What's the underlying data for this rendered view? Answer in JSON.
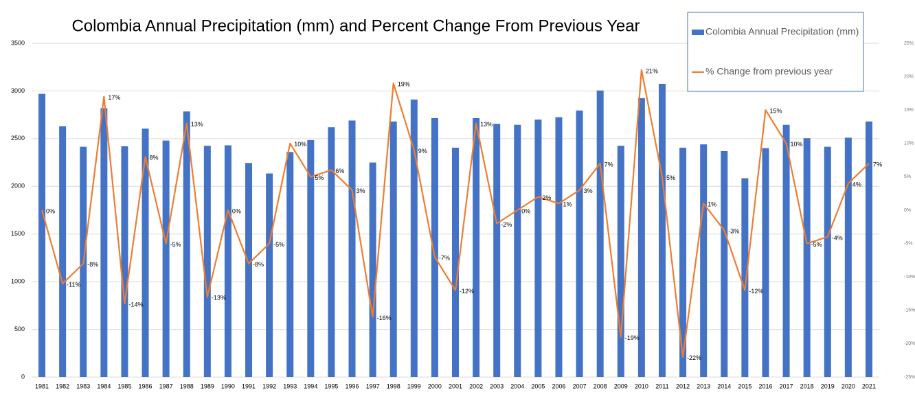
{
  "chart_data": {
    "type": "combo",
    "title": "Colombia Annual Precipitation (mm) and Percent Change From Previous Year",
    "categories": [
      "1981",
      "1982",
      "1983",
      "1984",
      "1985",
      "1986",
      "1987",
      "1988",
      "1989",
      "1990",
      "1991",
      "1992",
      "1993",
      "1994",
      "1995",
      "1996",
      "1997",
      "1998",
      "1999",
      "2000",
      "2001",
      "2002",
      "2003",
      "2004",
      "2005",
      "2006",
      "2007",
      "2008",
      "2009",
      "2010",
      "2011",
      "2012",
      "2013",
      "2014",
      "2015",
      "2016",
      "2017",
      "2018",
      "2019",
      "2020",
      "2021"
    ],
    "series": [
      {
        "name": "Colombia Annual Precipitation (mm)",
        "type": "bar",
        "color": "#4472c4",
        "values": [
          2970,
          2630,
          2415,
          2820,
          2420,
          2605,
          2480,
          2785,
          2425,
          2430,
          2245,
          2135,
          2360,
          2485,
          2620,
          2690,
          2250,
          2680,
          2910,
          2715,
          2405,
          2715,
          2655,
          2645,
          2700,
          2725,
          2795,
          3005,
          2425,
          2925,
          3075,
          2405,
          2440,
          2370,
          2085,
          2400,
          2645,
          2505,
          2415,
          2510,
          2680
        ]
      },
      {
        "name": "% Change from previous year",
        "type": "line",
        "color": "#ed7d31",
        "axis": "y2",
        "values": [
          0,
          -11,
          -8,
          17,
          -14,
          8,
          -5,
          13,
          -13,
          0,
          -8,
          -5,
          10,
          5,
          6,
          3,
          -16,
          19,
          9,
          -7,
          -12,
          13,
          -2,
          0,
          2,
          1,
          3,
          7,
          -19,
          21,
          5,
          -22,
          1,
          -3,
          -12,
          15,
          10,
          -5,
          -4,
          4,
          7
        ],
        "value_labels": [
          "0%",
          "-11%",
          "-8%",
          "17%",
          "-14%",
          "8%",
          "-5%",
          "13%",
          "-13%",
          "0%",
          "-8%",
          "-5%",
          "10%",
          "5%",
          "6%",
          "3%",
          "-16%",
          "19%",
          "9%",
          "-7%",
          "-12%",
          "13%",
          "-2%",
          "0%",
          "2%",
          "1%",
          "3%",
          "7%",
          "-19%",
          "21%",
          "5%",
          "-22%",
          "1%",
          "-3%",
          "-12%",
          "15%",
          "10%",
          "-5%",
          "-4%",
          "4%",
          "7%"
        ]
      }
    ],
    "ylim": [
      0,
      3500
    ],
    "yticks": [
      0,
      500,
      1000,
      1500,
      2000,
      2500,
      3000,
      3500
    ],
    "y2lim": [
      -25,
      25
    ],
    "y2ticks": [
      {
        "value": 25,
        "label": "25%"
      },
      {
        "value": 20,
        "label": "20%"
      },
      {
        "value": 15,
        "label": "15%"
      },
      {
        "value": 10,
        "label": "10%"
      },
      {
        "value": 5,
        "label": "5%"
      },
      {
        "value": 0,
        "label": "0%"
      },
      {
        "value": -5,
        "label": "-5%"
      },
      {
        "value": -10,
        "label": "-10%"
      },
      {
        "value": -15,
        "label": "-15%"
      },
      {
        "value": -20,
        "label": "-20%"
      },
      {
        "value": -25,
        "label": "-25%"
      }
    ],
    "grid": true
  }
}
